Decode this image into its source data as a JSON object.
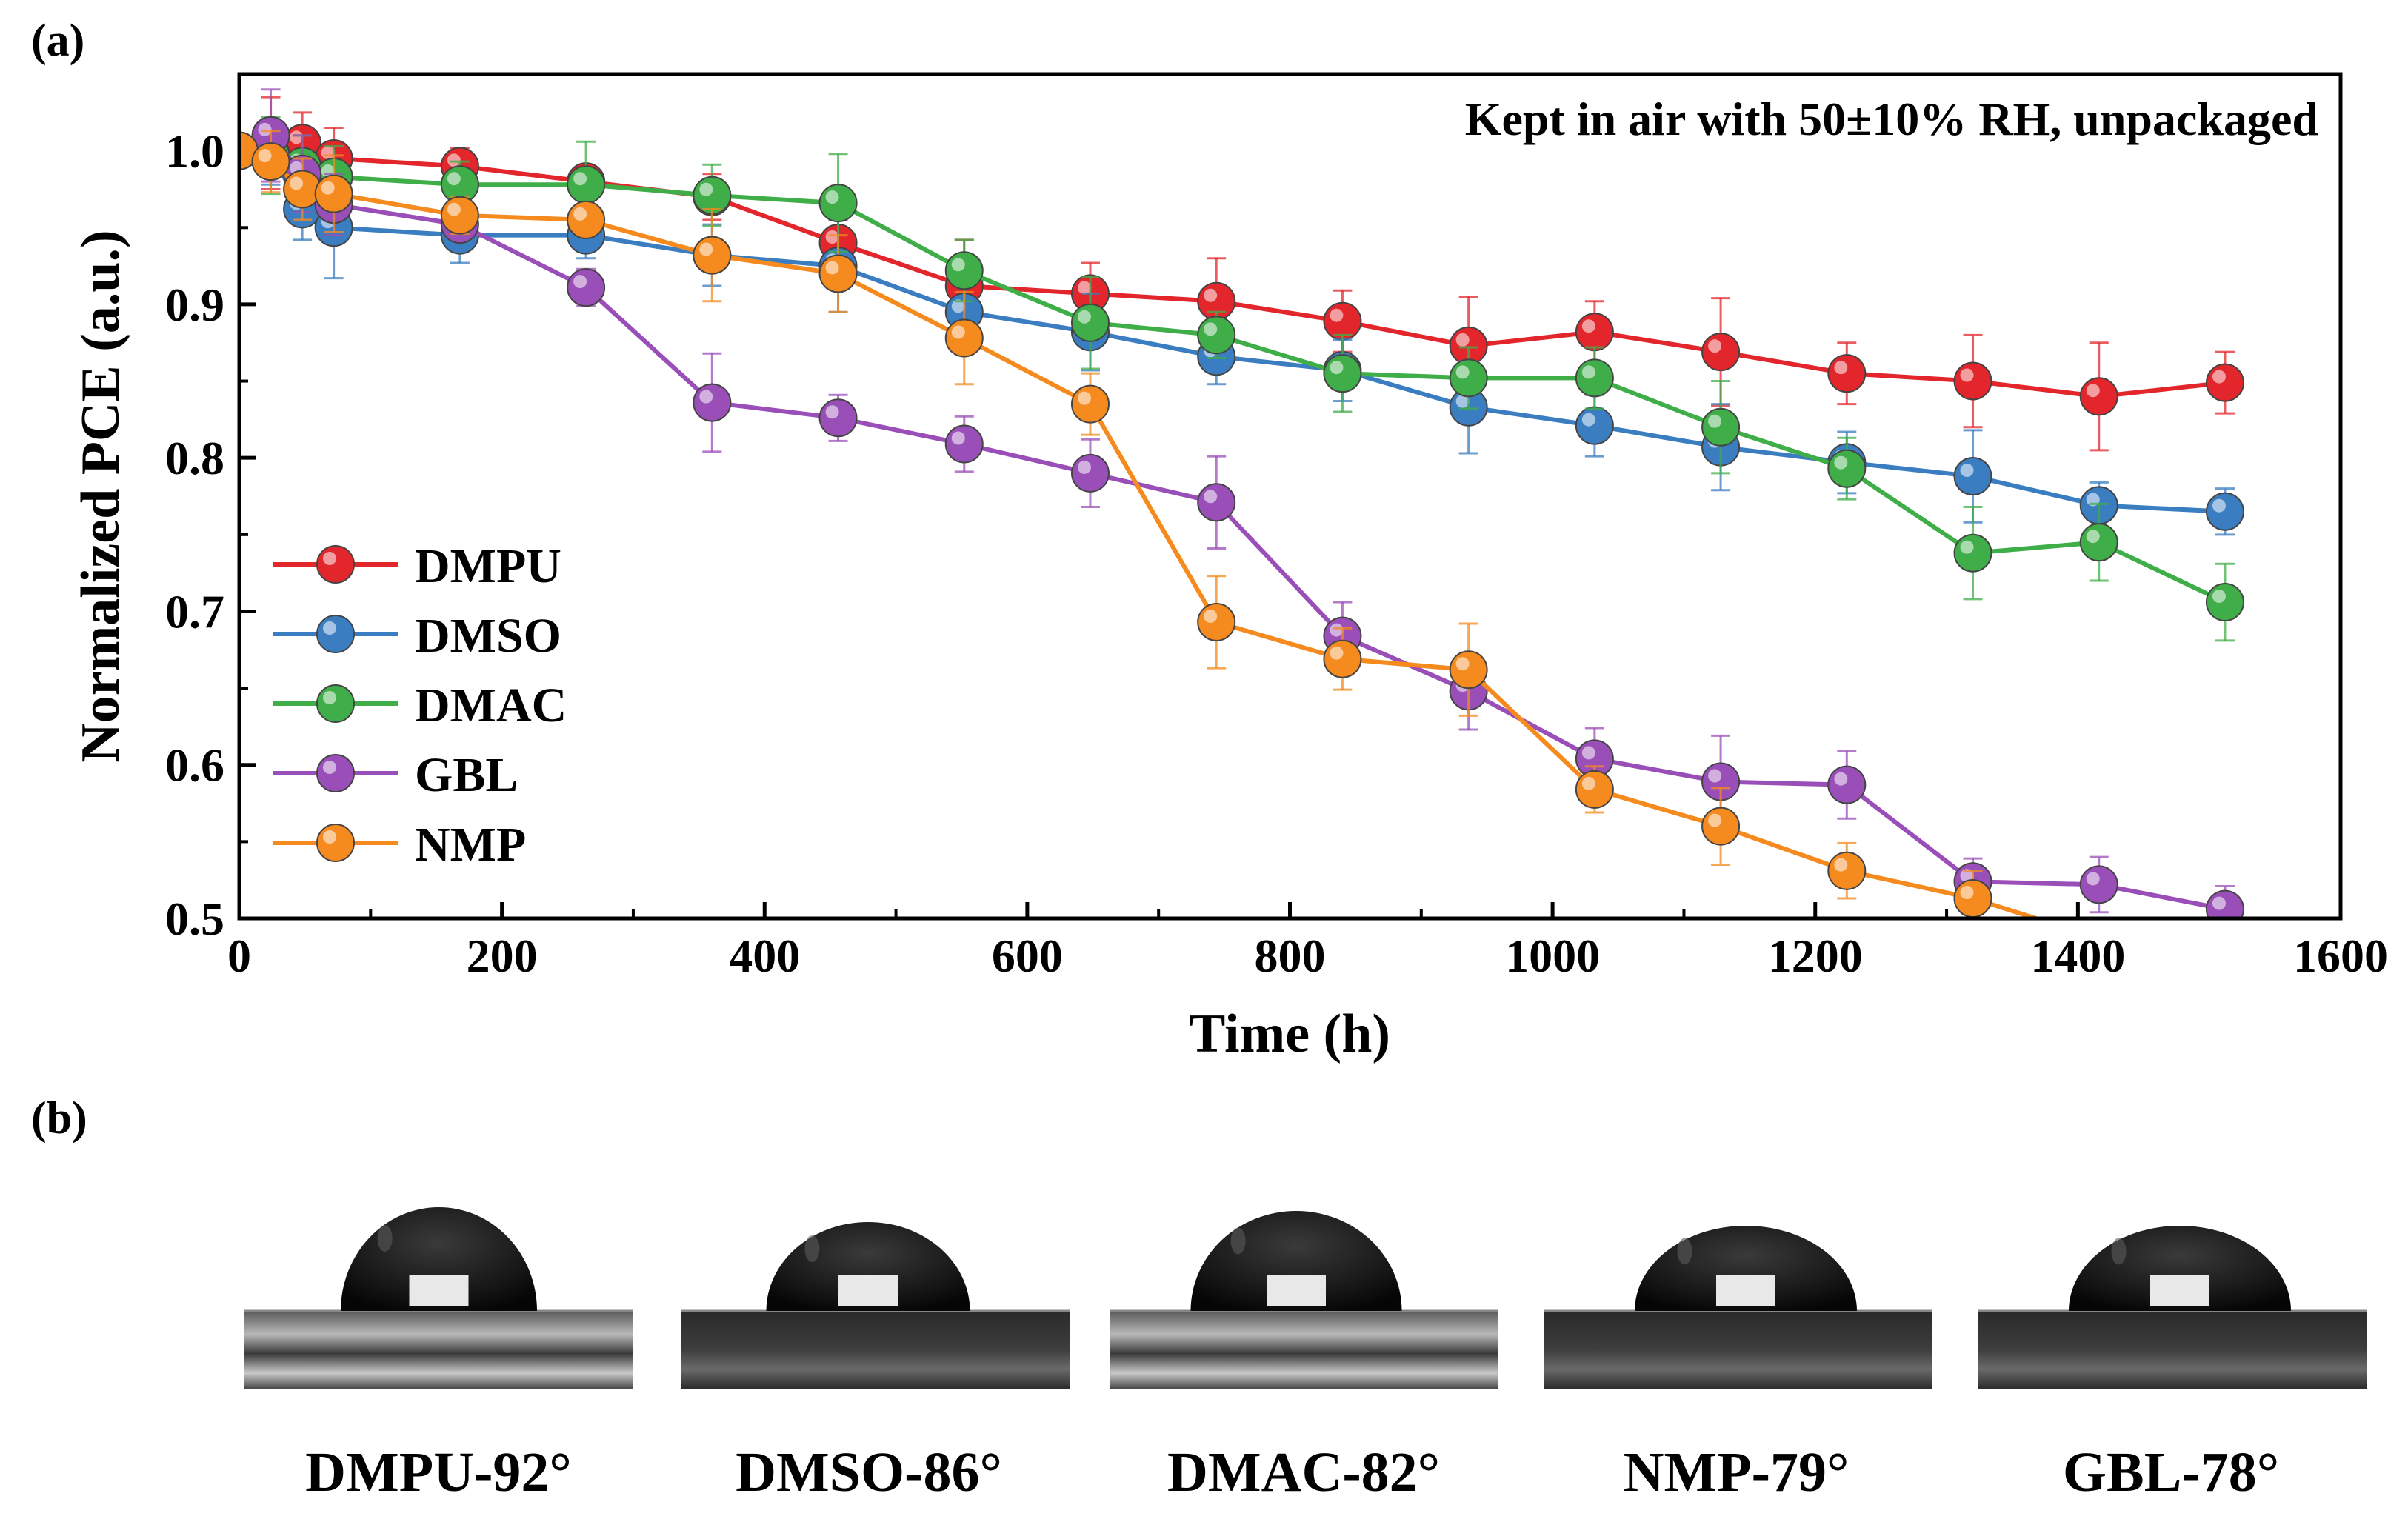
{
  "panel_a_label": "(a)",
  "panel_b_label": "(b)",
  "chart_data": {
    "type": "line",
    "title": "",
    "annotation": "Kept in air with 50±10% RH, unpackaged",
    "xlabel": "Time (h)",
    "ylabel": "Normalized PCE (a.u.)",
    "xlim": [
      0,
      1600
    ],
    "ylim": [
      0.5,
      1.05
    ],
    "xticks": [
      0,
      200,
      400,
      600,
      800,
      1000,
      1200,
      1400,
      1600
    ],
    "xtick_labels": [
      "0",
      "200",
      "400",
      "600",
      "800",
      "1000",
      "1200",
      "1400",
      "1600"
    ],
    "yticks": [
      0.5,
      0.6,
      0.7,
      0.8,
      0.9,
      1.0
    ],
    "ytick_labels": [
      "0.5",
      "0.6",
      "0.7",
      "0.8",
      "0.9",
      "1.0"
    ],
    "legend_position": "bottom-left",
    "series": [
      {
        "name": "DMPU",
        "color": "#e3262b",
        "x": [
          0,
          24,
          48,
          72,
          168,
          264,
          360,
          456,
          552,
          648,
          744,
          840,
          936,
          1032,
          1128,
          1224,
          1320,
          1416,
          1512
        ],
        "y": [
          1.0,
          1.005,
          1.005,
          0.995,
          0.99,
          0.98,
          0.97,
          0.94,
          0.912,
          0.907,
          0.902,
          0.889,
          0.873,
          0.882,
          0.869,
          0.855,
          0.85,
          0.84,
          0.849
        ],
        "err": [
          0.0,
          0.03,
          0.02,
          0.02,
          0.012,
          0.01,
          0.015,
          0.02,
          0.03,
          0.02,
          0.028,
          0.02,
          0.032,
          0.02,
          0.035,
          0.02,
          0.03,
          0.035,
          0.02
        ]
      },
      {
        "name": "DMSO",
        "color": "#3a7dc0",
        "x": [
          0,
          24,
          48,
          72,
          168,
          264,
          360,
          456,
          552,
          648,
          744,
          840,
          936,
          1032,
          1128,
          1224,
          1320,
          1416,
          1512
        ],
        "y": [
          1.0,
          0.998,
          0.962,
          0.95,
          0.945,
          0.945,
          0.932,
          0.925,
          0.895,
          0.882,
          0.866,
          0.857,
          0.833,
          0.821,
          0.807,
          0.797,
          0.788,
          0.769,
          0.765
        ],
        "err": [
          0.0,
          0.02,
          0.02,
          0.033,
          0.018,
          0.015,
          0.02,
          0.03,
          0.02,
          0.025,
          0.018,
          0.02,
          0.03,
          0.02,
          0.028,
          0.02,
          0.03,
          0.015,
          0.015
        ]
      },
      {
        "name": "DMAC",
        "color": "#3fae49",
        "x": [
          0,
          24,
          48,
          72,
          168,
          264,
          360,
          456,
          552,
          648,
          744,
          840,
          936,
          1032,
          1128,
          1224,
          1320,
          1416,
          1512
        ],
        "y": [
          1.0,
          0.997,
          0.99,
          0.983,
          0.978,
          0.978,
          0.971,
          0.966,
          0.922,
          0.888,
          0.88,
          0.855,
          0.852,
          0.852,
          0.82,
          0.793,
          0.738,
          0.745,
          0.706
        ],
        "err": [
          0.0,
          0.025,
          0.02,
          0.02,
          0.015,
          0.028,
          0.02,
          0.032,
          0.02,
          0.03,
          0.015,
          0.025,
          0.02,
          0.02,
          0.03,
          0.02,
          0.03,
          0.025,
          0.025
        ]
      },
      {
        "name": "GBL",
        "color": "#9a4fb8",
        "x": [
          0,
          24,
          48,
          72,
          168,
          264,
          360,
          456,
          552,
          648,
          744,
          840,
          936,
          1032,
          1128,
          1224,
          1320,
          1416,
          1512
        ],
        "y": [
          1.0,
          1.01,
          0.985,
          0.965,
          0.952,
          0.911,
          0.836,
          0.826,
          0.809,
          0.79,
          0.771,
          0.684,
          0.648,
          0.604,
          0.589,
          0.587,
          0.524,
          0.522,
          0.506
        ],
        "err": [
          0.0,
          0.03,
          0.025,
          0.02,
          0.01,
          0.012,
          0.032,
          0.015,
          0.018,
          0.022,
          0.03,
          0.022,
          0.025,
          0.02,
          0.03,
          0.022,
          0.015,
          0.018,
          0.015
        ]
      },
      {
        "name": "NMP",
        "color": "#f58b1f",
        "x": [
          0,
          24,
          48,
          72,
          168,
          264,
          360,
          456,
          552,
          648,
          744,
          840,
          936,
          1032,
          1128,
          1224,
          1320,
          1368
        ],
        "y": [
          1.0,
          0.993,
          0.975,
          0.972,
          0.958,
          0.955,
          0.932,
          0.92,
          0.878,
          0.835,
          0.693,
          0.669,
          0.662,
          0.584,
          0.56,
          0.531,
          0.513,
          0.5
        ],
        "err": [
          0.0,
          0.02,
          0.02,
          0.025,
          0.012,
          0.01,
          0.03,
          0.025,
          0.03,
          0.02,
          0.03,
          0.02,
          0.03,
          0.015,
          0.025,
          0.018,
          0.018,
          0.0
        ]
      }
    ]
  },
  "contact_angles": [
    {
      "label": "DMPU-92°",
      "solvent": "DMPU",
      "angle_deg": 92
    },
    {
      "label": "DMSO-86°",
      "solvent": "DMSO",
      "angle_deg": 86
    },
    {
      "label": "DMAC-82°",
      "solvent": "DMAC",
      "angle_deg": 82
    },
    {
      "label": "NMP-79°",
      "solvent": "NMP",
      "angle_deg": 79
    },
    {
      "label": "GBL-78°",
      "solvent": "GBL",
      "angle_deg": 78
    }
  ]
}
